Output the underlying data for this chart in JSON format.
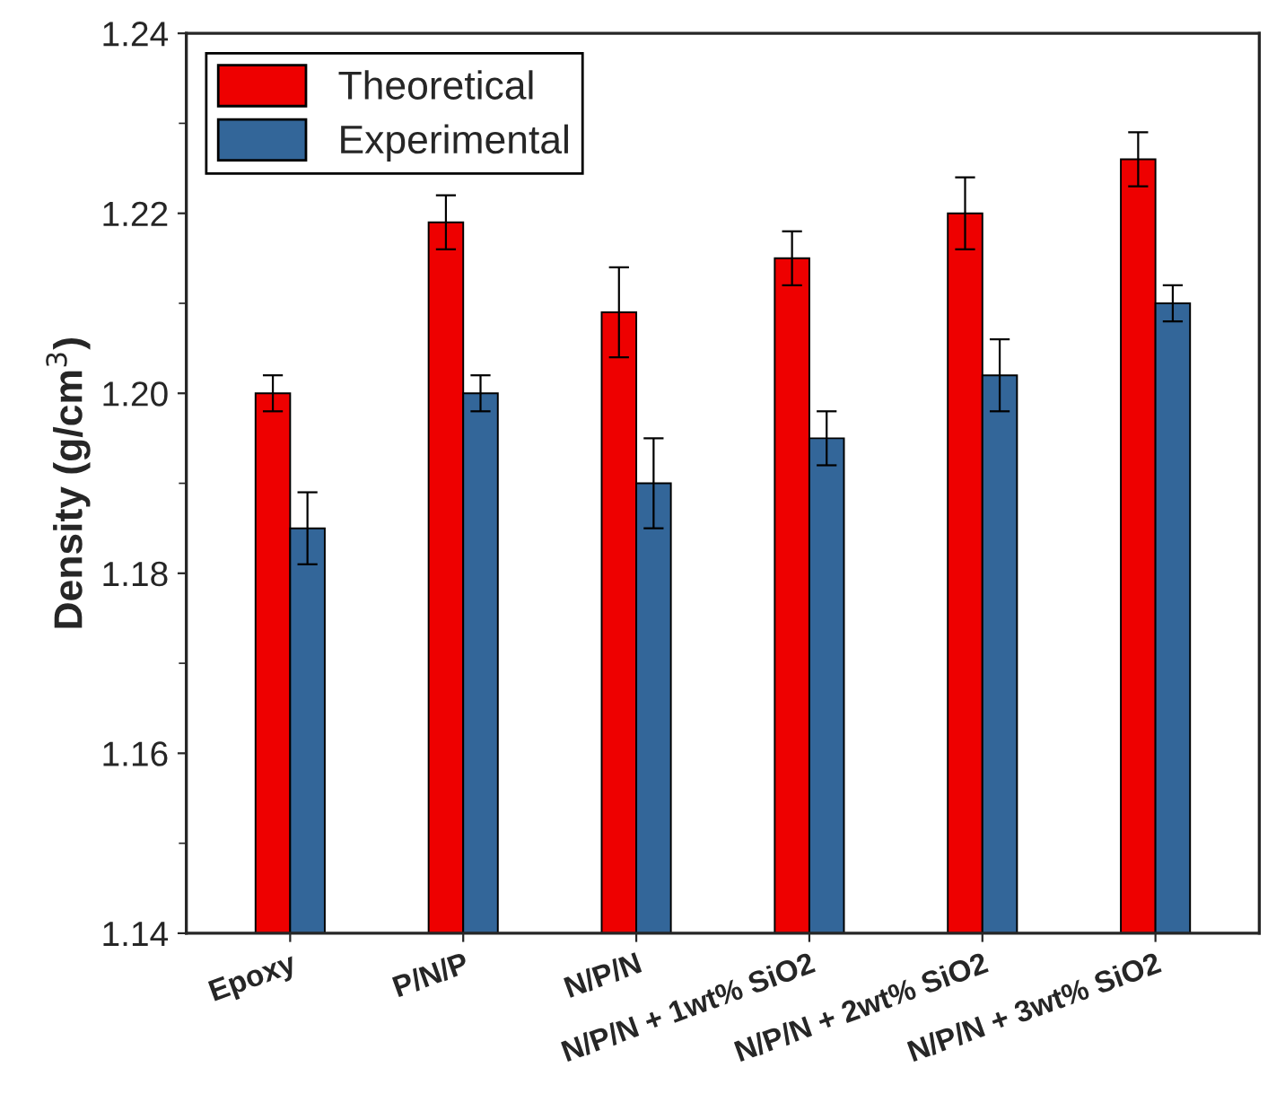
{
  "chart_data": {
    "type": "bar",
    "ylabel": "Density (g/cm$^{3}$)",
    "categories": [
      "Epoxy",
      "P/N/P",
      "N/P/N",
      "N/P/N + 1wt% SiO2",
      "N/P/N + 2wt% SiO2",
      "N/P/N + 3wt% SiO2"
    ],
    "series": [
      {
        "name": "Theoretical",
        "color": "#ee0000",
        "values": [
          1.2,
          1.219,
          1.209,
          1.215,
          1.22,
          1.226
        ],
        "errors": [
          0.002,
          0.003,
          0.005,
          0.003,
          0.004,
          0.003
        ]
      },
      {
        "name": "Experimental",
        "color": "#336699",
        "values": [
          1.185,
          1.2,
          1.19,
          1.195,
          1.202,
          1.21
        ],
        "errors": [
          0.004,
          0.002,
          0.005,
          0.003,
          0.004,
          0.002
        ]
      }
    ],
    "ylim": [
      1.14,
      1.24
    ],
    "yticks": [
      1.14,
      1.16,
      1.18,
      {
        "value": 1.2,
        "label": "1.20"
      },
      1.22,
      1.24
    ],
    "legend": "top left",
    "grid": false
  }
}
